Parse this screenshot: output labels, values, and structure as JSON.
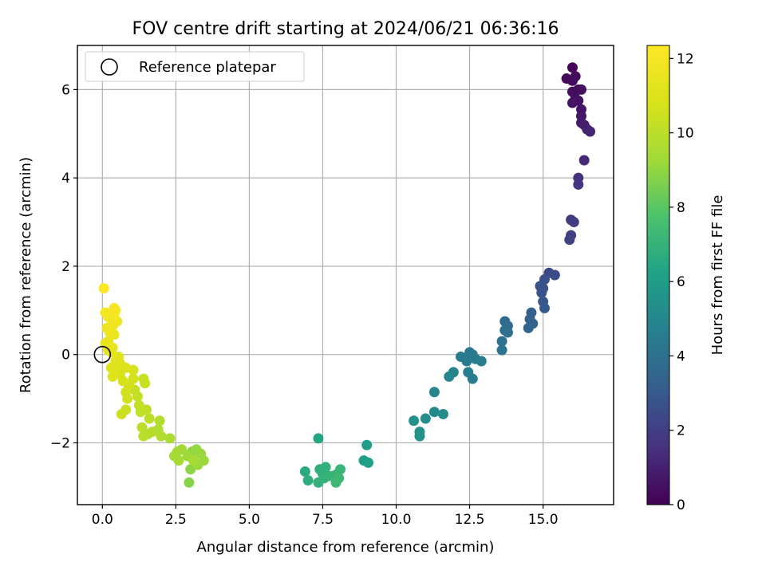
{
  "chart_data": {
    "type": "scatter",
    "title": "FOV centre drift starting at 2024/06/21 06:36:16",
    "xlabel": "Angular distance from reference (arcmin)",
    "ylabel": "Rotation from reference (arcmin)",
    "xlim": [
      -0.85,
      17.4
    ],
    "ylim": [
      -3.4,
      7.0
    ],
    "xticks": [
      0.0,
      2.5,
      5.0,
      7.5,
      10.0,
      12.5,
      15.0
    ],
    "xtick_labels": [
      "0.0",
      "2.5",
      "5.0",
      "7.5",
      "10.0",
      "12.5",
      "15.0"
    ],
    "yticks": [
      -2,
      0,
      2,
      4,
      6
    ],
    "ytick_labels": [
      "−2",
      "0",
      "2",
      "4",
      "6"
    ],
    "grid": true,
    "legend": {
      "position": "top-left",
      "entries": [
        "Reference platepar"
      ]
    },
    "reference_point": {
      "x": 0.0,
      "y": 0.0
    },
    "colorbar": {
      "label": "Hours from first FF file",
      "range": [
        0,
        12.35
      ],
      "ticks": [
        0,
        2,
        4,
        6,
        8,
        10,
        12
      ],
      "tick_labels": [
        "0",
        "2",
        "4",
        "6",
        "8",
        "10",
        "12"
      ],
      "colormap": "viridis"
    },
    "points": [
      {
        "x": 16.0,
        "y": 6.5,
        "h": 0.1
      },
      {
        "x": 16.1,
        "y": 6.3,
        "h": 0.2
      },
      {
        "x": 15.8,
        "y": 6.25,
        "h": 0.25
      },
      {
        "x": 16.0,
        "y": 6.2,
        "h": 0.3
      },
      {
        "x": 16.2,
        "y": 6.0,
        "h": 0.35
      },
      {
        "x": 16.0,
        "y": 5.95,
        "h": 0.4
      },
      {
        "x": 16.3,
        "y": 6.0,
        "h": 0.45
      },
      {
        "x": 16.1,
        "y": 5.8,
        "h": 0.5
      },
      {
        "x": 16.2,
        "y": 5.75,
        "h": 0.55
      },
      {
        "x": 16.0,
        "y": 5.7,
        "h": 0.6
      },
      {
        "x": 16.3,
        "y": 5.55,
        "h": 0.65
      },
      {
        "x": 16.3,
        "y": 5.4,
        "h": 0.7
      },
      {
        "x": 16.3,
        "y": 5.25,
        "h": 0.8
      },
      {
        "x": 16.4,
        "y": 5.2,
        "h": 0.9
      },
      {
        "x": 16.5,
        "y": 5.1,
        "h": 1.0
      },
      {
        "x": 16.6,
        "y": 5.05,
        "h": 1.1
      },
      {
        "x": 16.4,
        "y": 4.4,
        "h": 1.3
      },
      {
        "x": 16.2,
        "y": 4.0,
        "h": 1.5
      },
      {
        "x": 16.2,
        "y": 3.85,
        "h": 1.6
      },
      {
        "x": 15.95,
        "y": 3.05,
        "h": 1.8
      },
      {
        "x": 16.05,
        "y": 3.0,
        "h": 1.9
      },
      {
        "x": 15.95,
        "y": 2.7,
        "h": 2.0
      },
      {
        "x": 15.9,
        "y": 2.6,
        "h": 2.1
      },
      {
        "x": 15.2,
        "y": 1.85,
        "h": 2.4
      },
      {
        "x": 15.4,
        "y": 1.8,
        "h": 2.5
      },
      {
        "x": 15.05,
        "y": 1.7,
        "h": 2.6
      },
      {
        "x": 14.9,
        "y": 1.55,
        "h": 2.7
      },
      {
        "x": 15.0,
        "y": 1.5,
        "h": 2.75
      },
      {
        "x": 14.95,
        "y": 1.4,
        "h": 2.8
      },
      {
        "x": 15.0,
        "y": 1.2,
        "h": 2.9
      },
      {
        "x": 15.05,
        "y": 1.05,
        "h": 3.0
      },
      {
        "x": 14.6,
        "y": 0.95,
        "h": 3.2
      },
      {
        "x": 14.55,
        "y": 0.8,
        "h": 3.3
      },
      {
        "x": 14.65,
        "y": 0.7,
        "h": 3.4
      },
      {
        "x": 14.5,
        "y": 0.6,
        "h": 3.5
      },
      {
        "x": 13.7,
        "y": 0.75,
        "h": 3.7
      },
      {
        "x": 13.8,
        "y": 0.65,
        "h": 3.8
      },
      {
        "x": 13.7,
        "y": 0.55,
        "h": 3.9
      },
      {
        "x": 13.8,
        "y": 0.5,
        "h": 3.95
      },
      {
        "x": 13.6,
        "y": 0.3,
        "h": 4.0
      },
      {
        "x": 13.6,
        "y": 0.1,
        "h": 4.1
      },
      {
        "x": 12.5,
        "y": 0.05,
        "h": 4.3
      },
      {
        "x": 12.6,
        "y": 0.0,
        "h": 4.35
      },
      {
        "x": 12.2,
        "y": -0.05,
        "h": 4.4
      },
      {
        "x": 12.7,
        "y": -0.1,
        "h": 4.45
      },
      {
        "x": 12.4,
        "y": -0.15,
        "h": 4.5
      },
      {
        "x": 12.9,
        "y": -0.15,
        "h": 4.55
      },
      {
        "x": 12.45,
        "y": -0.4,
        "h": 4.6
      },
      {
        "x": 12.6,
        "y": -0.55,
        "h": 4.65
      },
      {
        "x": 11.95,
        "y": -0.4,
        "h": 4.8
      },
      {
        "x": 11.8,
        "y": -0.5,
        "h": 4.9
      },
      {
        "x": 11.3,
        "y": -0.85,
        "h": 5.0
      },
      {
        "x": 11.3,
        "y": -1.3,
        "h": 5.1
      },
      {
        "x": 11.6,
        "y": -1.35,
        "h": 5.2
      },
      {
        "x": 11.0,
        "y": -1.45,
        "h": 5.3
      },
      {
        "x": 10.6,
        "y": -1.5,
        "h": 5.4
      },
      {
        "x": 10.8,
        "y": -1.75,
        "h": 5.5
      },
      {
        "x": 10.8,
        "y": -1.85,
        "h": 5.6
      },
      {
        "x": 9.0,
        "y": -2.05,
        "h": 6.0
      },
      {
        "x": 8.9,
        "y": -2.4,
        "h": 6.1
      },
      {
        "x": 9.05,
        "y": -2.45,
        "h": 6.15
      },
      {
        "x": 7.35,
        "y": -1.9,
        "h": 6.4
      },
      {
        "x": 6.9,
        "y": -2.65,
        "h": 6.6
      },
      {
        "x": 7.0,
        "y": -2.85,
        "h": 6.7
      },
      {
        "x": 7.4,
        "y": -2.6,
        "h": 6.75
      },
      {
        "x": 7.5,
        "y": -2.7,
        "h": 6.8
      },
      {
        "x": 7.6,
        "y": -2.55,
        "h": 6.85
      },
      {
        "x": 7.35,
        "y": -2.9,
        "h": 6.9
      },
      {
        "x": 7.55,
        "y": -2.8,
        "h": 6.95
      },
      {
        "x": 7.7,
        "y": -2.75,
        "h": 7.0
      },
      {
        "x": 7.85,
        "y": -2.75,
        "h": 7.05
      },
      {
        "x": 8.0,
        "y": -2.7,
        "h": 7.1
      },
      {
        "x": 8.1,
        "y": -2.6,
        "h": 7.15
      },
      {
        "x": 7.95,
        "y": -2.85,
        "h": 7.2
      },
      {
        "x": 8.05,
        "y": -2.8,
        "h": 7.25
      },
      {
        "x": 7.95,
        "y": -2.9,
        "h": 7.3
      },
      {
        "x": 2.95,
        "y": -2.9,
        "h": 8.8
      },
      {
        "x": 3.0,
        "y": -2.6,
        "h": 8.9
      },
      {
        "x": 3.05,
        "y": -2.2,
        "h": 9.0
      },
      {
        "x": 3.2,
        "y": -2.15,
        "h": 9.05
      },
      {
        "x": 3.35,
        "y": -2.25,
        "h": 9.1
      },
      {
        "x": 3.45,
        "y": -2.4,
        "h": 9.15
      },
      {
        "x": 3.25,
        "y": -2.5,
        "h": 9.2
      },
      {
        "x": 2.9,
        "y": -2.3,
        "h": 9.25
      },
      {
        "x": 2.7,
        "y": -2.15,
        "h": 9.3
      },
      {
        "x": 2.55,
        "y": -2.2,
        "h": 9.35
      },
      {
        "x": 2.45,
        "y": -2.3,
        "h": 9.4
      },
      {
        "x": 2.6,
        "y": -2.4,
        "h": 9.45
      },
      {
        "x": 3.1,
        "y": -2.4,
        "h": 9.5
      },
      {
        "x": 2.3,
        "y": -1.9,
        "h": 9.6
      },
      {
        "x": 2.0,
        "y": -1.85,
        "h": 9.7
      },
      {
        "x": 1.9,
        "y": -1.7,
        "h": 9.75
      },
      {
        "x": 1.95,
        "y": -1.5,
        "h": 9.8
      },
      {
        "x": 1.7,
        "y": -1.75,
        "h": 9.85
      },
      {
        "x": 1.55,
        "y": -1.8,
        "h": 9.9
      },
      {
        "x": 1.4,
        "y": -1.85,
        "h": 9.95
      },
      {
        "x": 1.35,
        "y": -1.65,
        "h": 10.0
      },
      {
        "x": 1.6,
        "y": -1.45,
        "h": 10.05
      },
      {
        "x": 1.5,
        "y": -1.25,
        "h": 10.1
      },
      {
        "x": 1.3,
        "y": -1.3,
        "h": 10.15
      },
      {
        "x": 1.25,
        "y": -1.15,
        "h": 10.2
      },
      {
        "x": 1.2,
        "y": -0.95,
        "h": 10.25
      },
      {
        "x": 1.1,
        "y": -0.8,
        "h": 10.3
      },
      {
        "x": 1.45,
        "y": -0.65,
        "h": 10.35
      },
      {
        "x": 1.4,
        "y": -0.55,
        "h": 10.4
      },
      {
        "x": 0.8,
        "y": -1.25,
        "h": 10.45
      },
      {
        "x": 0.65,
        "y": -1.35,
        "h": 10.5
      },
      {
        "x": 0.85,
        "y": -1.0,
        "h": 10.55
      },
      {
        "x": 0.8,
        "y": -0.85,
        "h": 10.6
      },
      {
        "x": 0.9,
        "y": -0.7,
        "h": 10.65
      },
      {
        "x": 1.05,
        "y": -0.55,
        "h": 10.7
      },
      {
        "x": 1.05,
        "y": -0.35,
        "h": 10.75
      },
      {
        "x": 0.7,
        "y": -0.6,
        "h": 10.8
      },
      {
        "x": 0.6,
        "y": -0.45,
        "h": 10.85
      },
      {
        "x": 0.5,
        "y": -0.3,
        "h": 10.9
      },
      {
        "x": 0.8,
        "y": -0.3,
        "h": 10.95
      },
      {
        "x": 0.6,
        "y": -0.2,
        "h": 11.0
      },
      {
        "x": 0.35,
        "y": -0.5,
        "h": 11.05
      },
      {
        "x": 0.3,
        "y": -0.3,
        "h": 11.1
      },
      {
        "x": 0.45,
        "y": -0.15,
        "h": 11.15
      },
      {
        "x": 0.55,
        "y": -0.05,
        "h": 11.2
      },
      {
        "x": 0.3,
        "y": 0.05,
        "h": 11.3
      },
      {
        "x": 0.2,
        "y": 0.1,
        "h": 11.4
      },
      {
        "x": 0.35,
        "y": 0.15,
        "h": 11.45
      },
      {
        "x": 0.1,
        "y": 0.25,
        "h": 11.5
      },
      {
        "x": 0.2,
        "y": 0.3,
        "h": 11.55
      },
      {
        "x": 0.4,
        "y": 0.45,
        "h": 11.6
      },
      {
        "x": 0.25,
        "y": 0.5,
        "h": 11.65
      },
      {
        "x": 0.15,
        "y": 0.6,
        "h": 11.7
      },
      {
        "x": 0.35,
        "y": 0.65,
        "h": 11.75
      },
      {
        "x": 0.5,
        "y": 0.75,
        "h": 11.8
      },
      {
        "x": 0.3,
        "y": 0.8,
        "h": 11.85
      },
      {
        "x": 0.2,
        "y": 0.85,
        "h": 11.9
      },
      {
        "x": 0.4,
        "y": 0.9,
        "h": 11.95
      },
      {
        "x": 0.1,
        "y": 0.95,
        "h": 12.0
      },
      {
        "x": 0.45,
        "y": 1.0,
        "h": 12.05
      },
      {
        "x": 0.4,
        "y": 1.05,
        "h": 12.1
      },
      {
        "x": 0.05,
        "y": 1.5,
        "h": 12.3
      }
    ]
  }
}
